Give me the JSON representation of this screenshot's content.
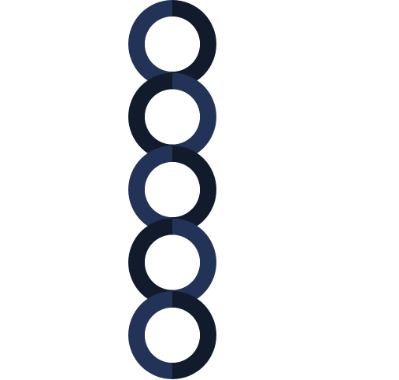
{
  "colors": {
    "navy": "#233358",
    "dark": "#111b2b",
    "background": "#ffffff",
    "inner": "#ffffff"
  },
  "rings": [
    {
      "name": "ring-1",
      "left_color": "navy",
      "right_color": "dark"
    },
    {
      "name": "ring-2",
      "left_color": "dark",
      "right_color": "navy"
    },
    {
      "name": "ring-3",
      "left_color": "navy",
      "right_color": "dark"
    },
    {
      "name": "ring-4",
      "left_color": "dark",
      "right_color": "navy"
    },
    {
      "name": "ring-5",
      "left_color": "navy",
      "right_color": "dark"
    }
  ]
}
